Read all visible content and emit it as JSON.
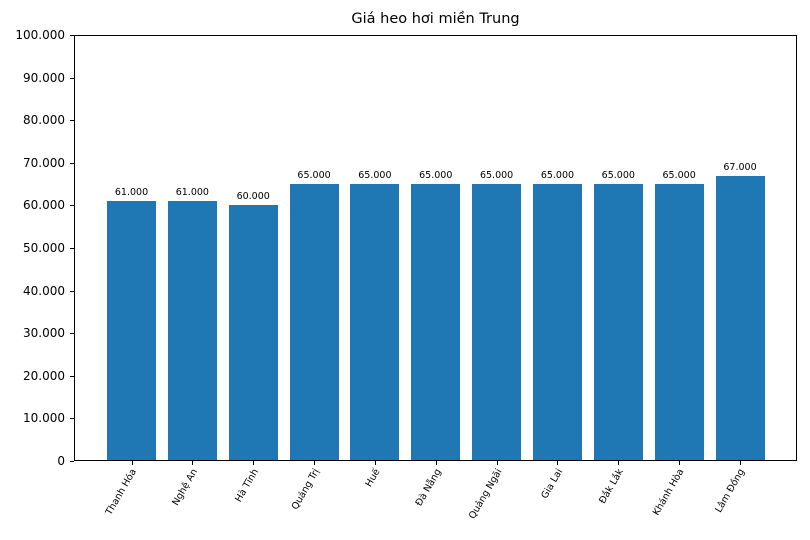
{
  "chart_data": {
    "type": "bar",
    "title": "Giá heo hơi miền Trung",
    "xlabel": "",
    "ylabel": "",
    "categories": [
      "Thanh Hóa",
      "Nghệ An",
      "Hà Tĩnh",
      "Quảng Trị",
      "Huế",
      "Đà Nẵng",
      "Quảng Ngãi",
      "Gia Lai",
      "Đắk Lắk",
      "Khánh Hòa",
      "Lâm Đồng"
    ],
    "values": [
      61000,
      61000,
      60000,
      65000,
      65000,
      65000,
      65000,
      65000,
      65000,
      65000,
      67000
    ],
    "value_labels": [
      "61.000",
      "61.000",
      "60.000",
      "65.000",
      "65.000",
      "65.000",
      "65.000",
      "65.000",
      "65.000",
      "65.000",
      "67.000"
    ],
    "ylim": [
      0,
      100000
    ],
    "yticks": [
      0,
      10000,
      20000,
      30000,
      40000,
      50000,
      60000,
      70000,
      80000,
      90000,
      100000
    ],
    "ytick_labels": [
      "0",
      "10.000",
      "20.000",
      "30.000",
      "40.000",
      "50.000",
      "60.000",
      "70.000",
      "80.000",
      "90.000",
      "100.000"
    ],
    "grid": false,
    "legend": null,
    "bar_color": "#1f77b4",
    "xtick_rotation": 60
  }
}
